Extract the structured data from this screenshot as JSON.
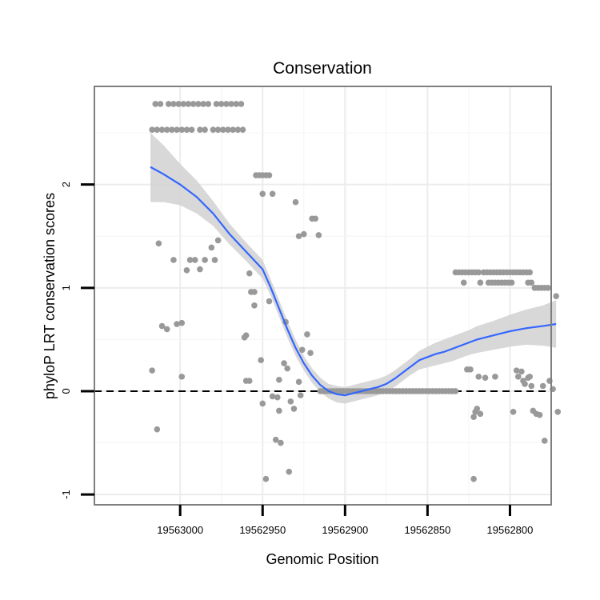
{
  "chart_data": {
    "type": "scatter",
    "title": "Conservation",
    "xlabel": "Genomic Position",
    "ylabel": "phyloP LRT conservation scores",
    "x_reversed": true,
    "xlim": [
      19563052,
      19562775
    ],
    "ylim": [
      -1.1,
      2.95
    ],
    "x_ticks": [
      19563000,
      19562950,
      19562900,
      19562850,
      19562800
    ],
    "x_tick_labels": [
      "19563000",
      "19562950",
      "19562900",
      "19562850",
      "19562800"
    ],
    "y_ticks": [
      -1,
      0,
      1,
      2
    ],
    "y_tick_labels": [
      "-1",
      "0",
      "1",
      "2"
    ],
    "hline": {
      "y": 0,
      "style": "dashed"
    },
    "grid": true,
    "series": [
      {
        "name": "phyloP scores",
        "kind": "points",
        "color": "#999999",
        "points": [
          [
            19563015,
            2.78
          ],
          [
            19563012,
            2.78
          ],
          [
            19563007,
            2.78
          ],
          [
            19563004,
            2.78
          ],
          [
            19563001,
            2.78
          ],
          [
            19562998,
            2.78
          ],
          [
            19562995,
            2.78
          ],
          [
            19562992,
            2.78
          ],
          [
            19562989,
            2.78
          ],
          [
            19562986,
            2.78
          ],
          [
            19562983,
            2.78
          ],
          [
            19562978,
            2.78
          ],
          [
            19562975,
            2.78
          ],
          [
            19562972,
            2.78
          ],
          [
            19562969,
            2.78
          ],
          [
            19562966,
            2.78
          ],
          [
            19562963,
            2.78
          ],
          [
            19563017,
            2.53
          ],
          [
            19563014,
            2.53
          ],
          [
            19563011,
            2.53
          ],
          [
            19563008,
            2.53
          ],
          [
            19563005,
            2.53
          ],
          [
            19563002,
            2.53
          ],
          [
            19562999,
            2.53
          ],
          [
            19562996,
            2.53
          ],
          [
            19562993,
            2.53
          ],
          [
            19562988,
            2.53
          ],
          [
            19562985,
            2.53
          ],
          [
            19562980,
            2.53
          ],
          [
            19562977,
            2.53
          ],
          [
            19562974,
            2.53
          ],
          [
            19562971,
            2.53
          ],
          [
            19562968,
            2.53
          ],
          [
            19562965,
            2.53
          ],
          [
            19562962,
            2.53
          ],
          [
            19563017,
            0.2
          ],
          [
            19563014,
            -0.37
          ],
          [
            19563013,
            1.43
          ],
          [
            19563011,
            0.63
          ],
          [
            19563008,
            0.6
          ],
          [
            19563004,
            1.27
          ],
          [
            19563002,
            0.65
          ],
          [
            19562999,
            0.14
          ],
          [
            19562999,
            0.66
          ],
          [
            19562996,
            1.17
          ],
          [
            19562994,
            1.27
          ],
          [
            19562991,
            1.27
          ],
          [
            19562988,
            1.18
          ],
          [
            19562985,
            1.27
          ],
          [
            19562981,
            1.39
          ],
          [
            19562979,
            1.27
          ],
          [
            19562977,
            1.46
          ],
          [
            19562961,
            0.52
          ],
          [
            19562960,
            0.54
          ],
          [
            19562960,
            0.1
          ],
          [
            19562958,
            0.1
          ],
          [
            19562958,
            1.14
          ],
          [
            19562957,
            0.96
          ],
          [
            19562955,
            0.83
          ],
          [
            19562955,
            0.96
          ],
          [
            19562951,
            0.3
          ],
          [
            19562950,
            -0.12
          ],
          [
            19562946,
            0.87
          ],
          [
            19562944,
            -0.05
          ],
          [
            19562940,
            0.11
          ],
          [
            19562937,
            0.27
          ],
          [
            19562936,
            0.67
          ],
          [
            19562935,
            0.22
          ],
          [
            19562934,
            -0.78
          ],
          [
            19562933,
            -0.1
          ],
          [
            19562931,
            -0.17
          ],
          [
            19562928,
            0.09
          ],
          [
            19562927,
            -0.04
          ],
          [
            19562926,
            0.4
          ],
          [
            19562954,
            2.09
          ],
          [
            19562952,
            2.09
          ],
          [
            19562950,
            2.09
          ],
          [
            19562948,
            2.09
          ],
          [
            19562946,
            2.09
          ],
          [
            19562950,
            1.91
          ],
          [
            19562944,
            1.91
          ],
          [
            19562941,
            -0.06
          ],
          [
            19562942,
            -0.47
          ],
          [
            19562940,
            -0.19
          ],
          [
            19562939,
            -0.5
          ],
          [
            19562948,
            -0.85
          ],
          [
            19562930,
            1.83
          ],
          [
            19562928,
            1.5
          ],
          [
            19562925,
            1.52
          ],
          [
            19562923,
            0.55
          ],
          [
            19562921,
            0.37
          ],
          [
            19562920,
            1.67
          ],
          [
            19562918,
            1.67
          ],
          [
            19562916,
            1.51
          ],
          [
            19562915,
            0.0
          ],
          [
            19562913,
            0.0
          ],
          [
            19562911,
            0.0
          ],
          [
            19562909,
            0.0
          ],
          [
            19562907,
            0.0
          ],
          [
            19562905,
            0.0
          ],
          [
            19562903,
            0.0
          ],
          [
            19562901,
            0.0
          ],
          [
            19562899,
            0.0
          ],
          [
            19562897,
            0.0
          ],
          [
            19562895,
            0.0
          ],
          [
            19562893,
            0.0
          ],
          [
            19562891,
            0.0
          ],
          [
            19562889,
            0.0
          ],
          [
            19562887,
            0.0
          ],
          [
            19562885,
            0.0
          ],
          [
            19562883,
            0.0
          ],
          [
            19562881,
            0.0
          ],
          [
            19562879,
            0.0
          ],
          [
            19562877,
            0.0
          ],
          [
            19562875,
            0.0
          ],
          [
            19562873,
            0.0
          ],
          [
            19562871,
            0.0
          ],
          [
            19562869,
            0.0
          ],
          [
            19562867,
            0.0
          ],
          [
            19562865,
            0.0
          ],
          [
            19562863,
            0.0
          ],
          [
            19562861,
            0.0
          ],
          [
            19562859,
            0.0
          ],
          [
            19562857,
            0.0
          ],
          [
            19562855,
            0.0
          ],
          [
            19562853,
            0.0
          ],
          [
            19562851,
            0.0
          ],
          [
            19562849,
            0.0
          ],
          [
            19562847,
            0.0
          ],
          [
            19562845,
            0.0
          ],
          [
            19562843,
            0.0
          ],
          [
            19562841,
            0.0
          ],
          [
            19562839,
            0.0
          ],
          [
            19562837,
            0.0
          ],
          [
            19562835,
            0.0
          ],
          [
            19562833,
            0.0
          ],
          [
            19562833,
            1.15
          ],
          [
            19562831,
            1.15
          ],
          [
            19562829,
            1.15
          ],
          [
            19562827,
            1.15
          ],
          [
            19562825,
            1.15
          ],
          [
            19562823,
            1.15
          ],
          [
            19562821,
            1.15
          ],
          [
            19562819,
            1.15
          ],
          [
            19562816,
            1.15
          ],
          [
            19562814,
            1.15
          ],
          [
            19562812,
            1.15
          ],
          [
            19562810,
            1.15
          ],
          [
            19562808,
            1.15
          ],
          [
            19562806,
            1.15
          ],
          [
            19562804,
            1.15
          ],
          [
            19562802,
            1.15
          ],
          [
            19562800,
            1.15
          ],
          [
            19562798,
            1.15
          ],
          [
            19562796,
            1.15
          ],
          [
            19562794,
            1.15
          ],
          [
            19562792,
            1.15
          ],
          [
            19562790,
            1.15
          ],
          [
            19562788,
            1.15
          ],
          [
            19562828,
            1.05
          ],
          [
            19562818,
            1.05
          ],
          [
            19562813,
            1.05
          ],
          [
            19562811,
            1.05
          ],
          [
            19562809,
            1.05
          ],
          [
            19562807,
            1.05
          ],
          [
            19562805,
            1.05
          ],
          [
            19562803,
            1.05
          ],
          [
            19562801,
            1.05
          ],
          [
            19562799,
            1.05
          ],
          [
            19562789,
            1.05
          ],
          [
            19562787,
            1.05
          ],
          [
            19562785,
            1.0
          ],
          [
            19562783,
            1.0
          ],
          [
            19562781,
            1.0
          ],
          [
            19562779,
            1.0
          ],
          [
            19562777,
            1.0
          ],
          [
            19562826,
            0.21
          ],
          [
            19562824,
            0.21
          ],
          [
            19562822,
            -0.25
          ],
          [
            19562821,
            -0.2
          ],
          [
            19562820,
            -0.17
          ],
          [
            19562819,
            0.14
          ],
          [
            19562818,
            -0.22
          ],
          [
            19562822,
            -0.85
          ],
          [
            19562815,
            0.13
          ],
          [
            19562809,
            0.14
          ],
          [
            19562798,
            -0.2
          ],
          [
            19562796,
            0.2
          ],
          [
            19562795,
            0.14
          ],
          [
            19562793,
            0.19
          ],
          [
            19562792,
            0.1
          ],
          [
            19562791,
            0.07
          ],
          [
            19562789,
            0.13
          ],
          [
            19562788,
            0.14
          ],
          [
            19562787,
            0.05
          ],
          [
            19562786,
            -0.19
          ],
          [
            19562784,
            -0.22
          ],
          [
            19562782,
            -0.23
          ],
          [
            19562780,
            0.05
          ],
          [
            19562779,
            -0.48
          ],
          [
            19562776,
            0.1
          ],
          [
            19562774,
            0.02
          ],
          [
            19562772,
            0.92
          ],
          [
            19562771,
            -0.2
          ]
        ]
      },
      {
        "name": "loess fit",
        "kind": "line",
        "color": "#3366ff",
        "band_color": "#d4d4d4",
        "x": [
          19563018,
          19563010,
          19563000,
          19562990,
          19562980,
          19562970,
          19562960,
          19562950,
          19562945,
          19562940,
          19562935,
          19562930,
          19562925,
          19562920,
          19562915,
          19562910,
          19562905,
          19562900,
          19562895,
          19562890,
          19562885,
          19562880,
          19562875,
          19562870,
          19562865,
          19562860,
          19562855,
          19562850,
          19562845,
          19562840,
          19562835,
          19562830,
          19562825,
          19562820,
          19562810,
          19562800,
          19562790,
          19562780,
          19562772
        ],
        "y": [
          2.17,
          2.1,
          2.0,
          1.88,
          1.72,
          1.52,
          1.35,
          1.18,
          1.0,
          0.8,
          0.6,
          0.42,
          0.27,
          0.15,
          0.06,
          0.0,
          -0.03,
          -0.04,
          -0.02,
          0.0,
          0.02,
          0.04,
          0.07,
          0.12,
          0.18,
          0.24,
          0.3,
          0.33,
          0.36,
          0.38,
          0.41,
          0.44,
          0.47,
          0.5,
          0.54,
          0.58,
          0.61,
          0.63,
          0.65
        ],
        "lower": [
          1.83,
          1.83,
          1.8,
          1.72,
          1.6,
          1.42,
          1.26,
          1.09,
          0.92,
          0.72,
          0.52,
          0.34,
          0.2,
          0.08,
          -0.01,
          -0.07,
          -0.11,
          -0.12,
          -0.1,
          -0.08,
          -0.06,
          -0.04,
          -0.01,
          0.04,
          0.1,
          0.16,
          0.21,
          0.23,
          0.25,
          0.27,
          0.29,
          0.32,
          0.35,
          0.37,
          0.4,
          0.43,
          0.45,
          0.44,
          0.42
        ],
        "upper": [
          2.5,
          2.38,
          2.2,
          2.04,
          1.84,
          1.62,
          1.44,
          1.27,
          1.08,
          0.88,
          0.68,
          0.5,
          0.34,
          0.22,
          0.13,
          0.07,
          0.05,
          0.04,
          0.06,
          0.08,
          0.1,
          0.12,
          0.15,
          0.2,
          0.26,
          0.32,
          0.39,
          0.43,
          0.47,
          0.5,
          0.53,
          0.56,
          0.59,
          0.63,
          0.68,
          0.74,
          0.79,
          0.83,
          0.88
        ]
      }
    ]
  }
}
